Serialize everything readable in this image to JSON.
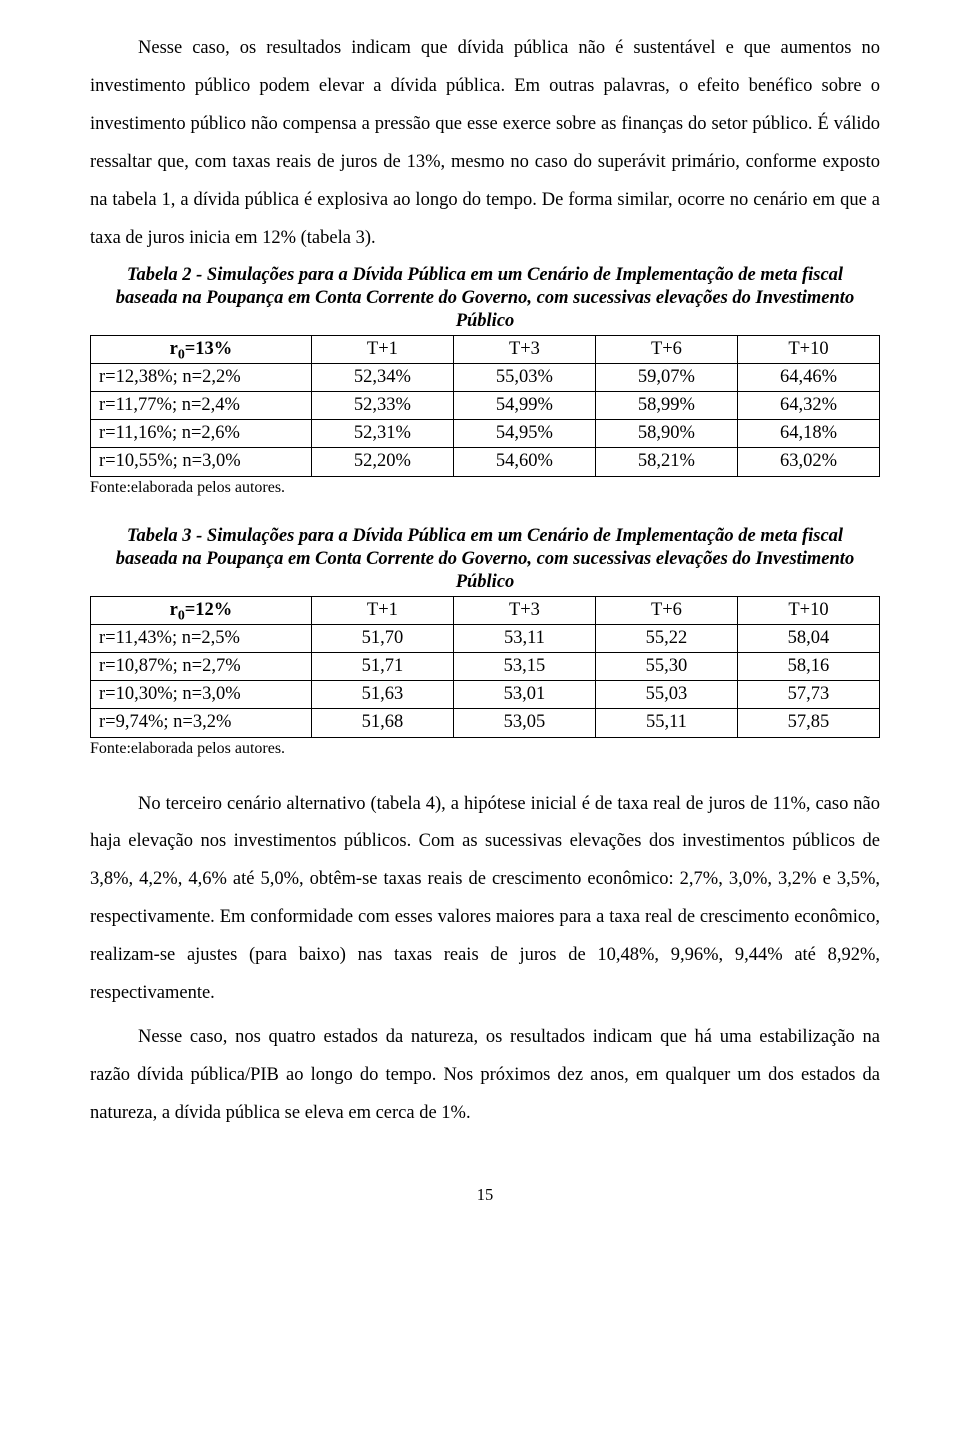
{
  "paragraph1": "Nesse caso, os resultados indicam que dívida pública não é sustentável e que aumentos no investimento público podem elevar a dívida pública. Em outras palavras, o efeito benéfico sobre o investimento público não compensa a pressão que esse exerce sobre as finanças do setor público. É válido ressaltar que, com taxas reais de juros de 13%, mesmo no caso do superávit primário, conforme exposto na tabela 1, a dívida pública é explosiva ao longo do tempo. De forma similar, ocorre no cenário em que a taxa de juros inicia em 12% (tabela 3).",
  "table2": {
    "title": "Tabela 2 - Simulações para a Dívida Pública em um Cenário de Implementação de meta fiscal baseada na Poupança em Conta Corrente do Governo, com sucessivas elevações do Investimento Público",
    "header_pre": "r",
    "header_sub": "0",
    "header_post": "=13%",
    "cols": [
      "T+1",
      "T+3",
      "T+6",
      "T+10"
    ],
    "rows": [
      {
        "label": "r=12,38%; n=2,2%",
        "v": [
          "52,34%",
          "55,03%",
          "59,07%",
          "64,46%"
        ]
      },
      {
        "label": "r=11,77%; n=2,4%",
        "v": [
          "52,33%",
          "54,99%",
          "58,99%",
          "64,32%"
        ]
      },
      {
        "label": "r=11,16%; n=2,6%",
        "v": [
          "52,31%",
          "54,95%",
          "58,90%",
          "64,18%"
        ]
      },
      {
        "label": "r=10,55%; n=3,0%",
        "v": [
          "52,20%",
          "54,60%",
          "58,21%",
          "63,02%"
        ]
      }
    ]
  },
  "fonte": "Fonte:elaborada pelos autores.",
  "table3": {
    "title": "Tabela 3 - Simulações para a Dívida Pública em um Cenário de Implementação de meta fiscal baseada na Poupança em Conta Corrente do Governo, com sucessivas elevações do Investimento Público",
    "header_pre": "r",
    "header_sub": "0",
    "header_post": "=12%",
    "cols": [
      "T+1",
      "T+3",
      "T+6",
      "T+10"
    ],
    "rows": [
      {
        "label": "r=11,43%; n=2,5%",
        "v": [
          "51,70",
          "53,11",
          "55,22",
          "58,04"
        ]
      },
      {
        "label": "r=10,87%; n=2,7%",
        "v": [
          "51,71",
          "53,15",
          "55,30",
          "58,16"
        ]
      },
      {
        "label": "r=10,30%; n=3,0%",
        "v": [
          "51,63",
          "53,01",
          "55,03",
          "57,73"
        ]
      },
      {
        "label": "r=9,74%; n=3,2%",
        "v": [
          "51,68",
          "53,05",
          "55,11",
          "57,85"
        ]
      }
    ]
  },
  "paragraph2": "No terceiro cenário alternativo (tabela 4), a hipótese inicial é de taxa real de juros de 11%, caso não haja elevação nos investimentos públicos. Com as sucessivas elevações dos investimentos públicos de 3,8%, 4,2%, 4,6% até 5,0%, obtêm-se taxas reais de crescimento econômico: 2,7%, 3,0%, 3,2% e 3,5%, respectivamente. Em conformidade com esses valores maiores para a taxa real de crescimento econômico, realizam-se ajustes (para baixo) nas taxas reais de juros de 10,48%, 9,96%, 9,44% até 8,92%, respectivamente.",
  "paragraph3": "Nesse caso, nos quatro estados da natureza, os resultados indicam que há uma estabilização na razão dívida pública/PIB ao longo do tempo. Nos próximos dez anos, em qualquer um dos estados da natureza, a dívida pública se eleva em cerca de 1%.",
  "page_number": "15"
}
